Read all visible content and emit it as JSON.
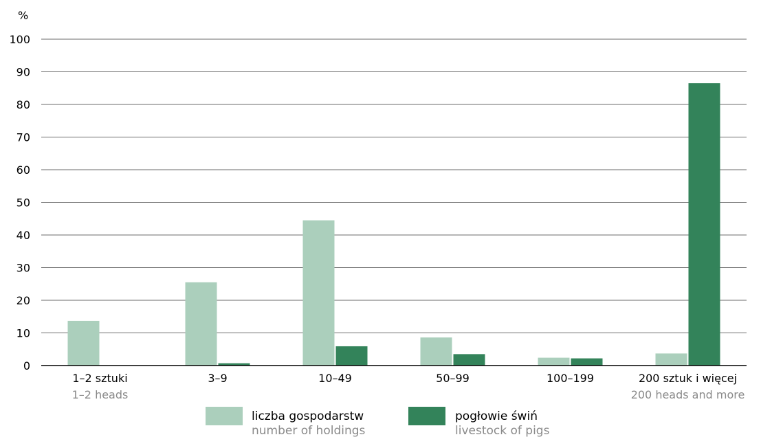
{
  "chart_data": {
    "type": "bar",
    "y_unit": "%",
    "ylim": [
      0,
      100
    ],
    "yticks": [
      0,
      10,
      20,
      30,
      40,
      50,
      60,
      70,
      80,
      90,
      100
    ],
    "grid": true,
    "legend_position": "bottom",
    "categories": [
      {
        "label": "1–2 sztuki",
        "sublabel": "1–2 heads"
      },
      {
        "label": "3–9",
        "sublabel": ""
      },
      {
        "label": "10–49",
        "sublabel": ""
      },
      {
        "label": "50–99",
        "sublabel": ""
      },
      {
        "label": "100–199",
        "sublabel": ""
      },
      {
        "label": "200 sztuk i więcej",
        "sublabel": "200 heads and more"
      }
    ],
    "series": [
      {
        "name": "liczba gospodarstw",
        "name_en": "number of holdings",
        "color": "#abcfbc",
        "values": [
          13.7,
          25.5,
          44.5,
          8.6,
          2.4,
          3.7
        ]
      },
      {
        "name": "pogłowie świń",
        "name_en": "livestock of pigs",
        "color": "#33835a",
        "values": [
          0.0,
          0.7,
          5.9,
          3.5,
          2.2,
          86.5
        ]
      }
    ]
  }
}
